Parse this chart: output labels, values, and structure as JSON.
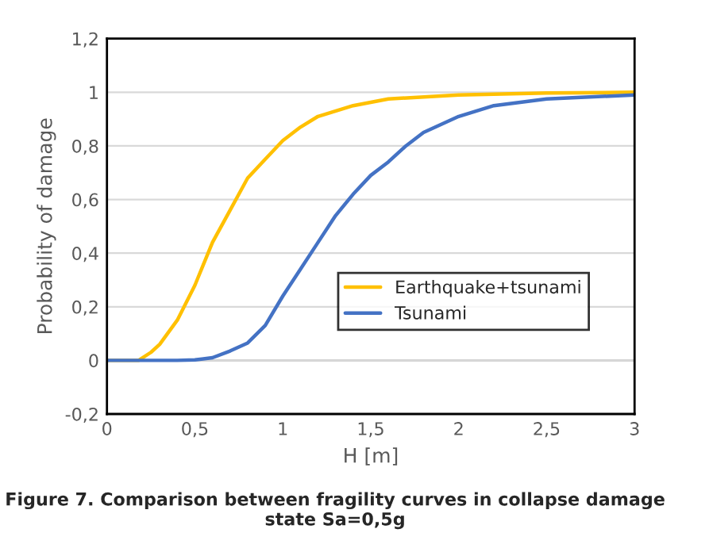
{
  "chart_data": {
    "type": "line",
    "xlabel": "H [m]",
    "ylabel": "Probability of damage",
    "annotations": [
      "Figure 7. Comparison between fragility curves in collapse damage state Sa=0,5g"
    ],
    "series": [
      {
        "name": "Earthquake+tsunami",
        "color": "#ffc000",
        "x": [
          0,
          0.1,
          0.18,
          0.25,
          0.3,
          0.4,
          0.5,
          0.6,
          0.7,
          0.8,
          0.9,
          1.0,
          1.1,
          1.2,
          1.4,
          1.6,
          2.0,
          2.5,
          3.0
        ],
        "values": [
          0,
          0,
          0,
          0.03,
          0.06,
          0.15,
          0.28,
          0.44,
          0.56,
          0.68,
          0.75,
          0.82,
          0.87,
          0.91,
          0.95,
          0.975,
          0.99,
          0.997,
          1.0
        ]
      },
      {
        "name": "Tsunami",
        "color": "#4472c4",
        "x": [
          0,
          0.4,
          0.5,
          0.6,
          0.7,
          0.8,
          0.9,
          1.0,
          1.1,
          1.2,
          1.3,
          1.4,
          1.5,
          1.6,
          1.7,
          1.8,
          2.0,
          2.2,
          2.5,
          3.0
        ],
        "values": [
          0,
          0,
          0.002,
          0.01,
          0.035,
          0.065,
          0.13,
          0.24,
          0.34,
          0.44,
          0.54,
          0.62,
          0.69,
          0.74,
          0.8,
          0.85,
          0.91,
          0.95,
          0.975,
          0.99
        ]
      }
    ],
    "xlim": [
      0,
      3
    ],
    "xticks": [
      0,
      {
        "value": 0.5,
        "label": "0,5"
      },
      1,
      {
        "value": 1.5,
        "label": "1,5"
      },
      2,
      {
        "value": 2.5,
        "label": "2,5"
      },
      3
    ],
    "ylim": [
      -0.2,
      1.2
    ],
    "yticks": [
      {
        "value": -0.2,
        "label": "-0,2"
      },
      0,
      {
        "value": 0.2,
        "label": "0,2"
      },
      {
        "value": 0.4,
        "label": "0,4"
      },
      {
        "value": 0.6,
        "label": "0,6"
      },
      {
        "value": 0.8,
        "label": "0,8"
      },
      1,
      {
        "value": 1.2,
        "label": "1,2"
      }
    ],
    "grid": "y",
    "legend": "right",
    "line_style": "solid",
    "marker": "none"
  }
}
